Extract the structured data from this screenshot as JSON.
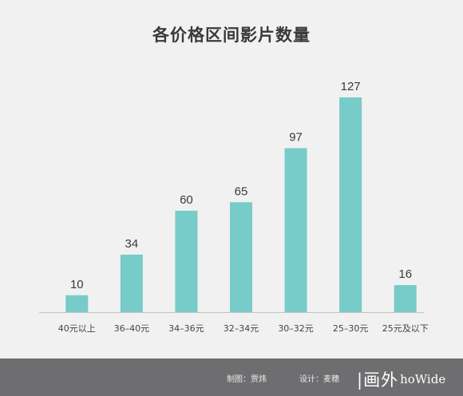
{
  "chart_data": {
    "type": "bar",
    "title": "各价格区间影片数量",
    "categories": [
      "40元以上",
      "36–40元",
      "34–36元",
      "32–34元",
      "30–32元",
      "25–30元",
      "25元及以下"
    ],
    "values": [
      10,
      34,
      60,
      65,
      97,
      127,
      16
    ],
    "ylim": [
      0,
      127
    ],
    "grid": false,
    "bar_color": "#77cbc8"
  },
  "footer": {
    "chart_credit": "制图：贾炜",
    "design_credit": "设计：麦穗",
    "logo_cn": "|画外",
    "logo_en": "hoWide"
  }
}
